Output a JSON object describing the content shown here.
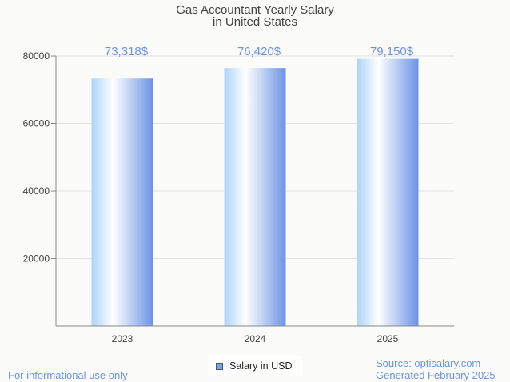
{
  "chart_data": {
    "type": "bar",
    "title": "Gas Accountant Yearly Salary",
    "subtitle": "in United States",
    "categories": [
      "2023",
      "2024",
      "2025"
    ],
    "values": [
      73318,
      76420,
      79150
    ],
    "data_labels": [
      "73,318$",
      "76,420$",
      "79,150$"
    ],
    "yticks": [
      20000,
      40000,
      60000,
      80000
    ],
    "ylim": [
      0,
      80000
    ],
    "xlabel": "",
    "ylabel": "",
    "grid": true,
    "legend": {
      "entries": [
        "Salary in USD"
      ],
      "placement": "bottom-center"
    },
    "colors": {
      "bar_light": "#aed4fb",
      "bar_mid": "#ffffff",
      "bar_dark": "#6b93e6",
      "label": "#6b93e6"
    }
  },
  "footer": {
    "left": "For informational use only",
    "source": "Source: optisalary.com",
    "generated": "Generated February 2025"
  }
}
